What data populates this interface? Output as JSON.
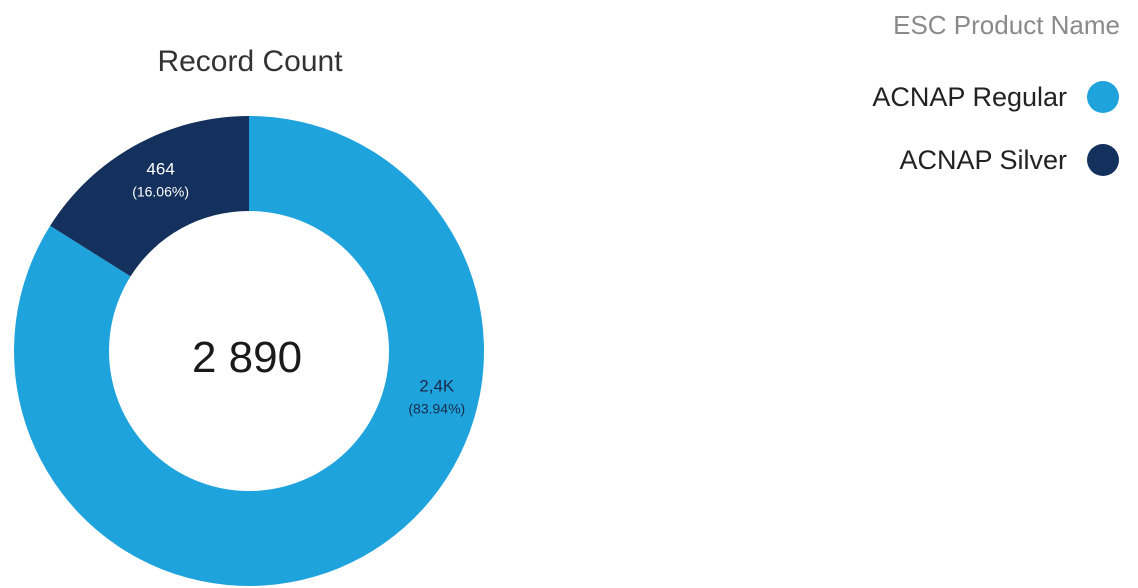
{
  "chart_data": {
    "type": "pie",
    "variant": "donut",
    "title": "Record Count",
    "center_label": "2 890",
    "total": 2890,
    "legend_title": "ESC Product Name",
    "legend_position": "top-right",
    "slices": [
      {
        "name": "ACNAP Regular",
        "value": 2426,
        "value_label": "2,4K",
        "percent_label": "(83.94%)",
        "color": "#1fa3dd",
        "text_color": "#1b2a4a"
      },
      {
        "name": "ACNAP Silver",
        "value": 464,
        "value_label": "464",
        "percent_label": "(16.06%)",
        "color": "#14305c",
        "text_color": "#ffffff"
      }
    ]
  }
}
